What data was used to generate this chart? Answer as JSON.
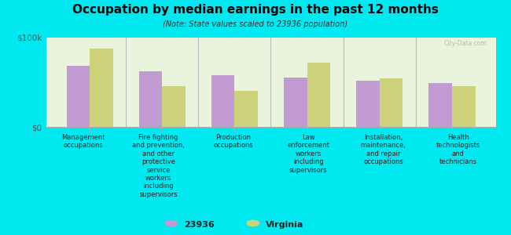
{
  "title": "Occupation by median earnings in the past 12 months",
  "subtitle": "(Note: State values scaled to 23936 population)",
  "categories": [
    "Management\noccupations",
    "Fire fighting\nand prevention,\nand other\nprotective\nservice\nworkers\nincluding\nsupervisors",
    "Production\noccupations",
    "Law\nenforcement\nworkers\nincluding\nsupervisors",
    "Installation,\nmaintenance,\nand repair\noccupations",
    "Health\ntechnologists\nand\ntechnicians"
  ],
  "values_23936": [
    68000,
    62000,
    58000,
    55000,
    52000,
    49000
  ],
  "values_virginia": [
    88000,
    46000,
    40000,
    72000,
    54000,
    46000
  ],
  "ylim": [
    0,
    100000
  ],
  "yticks": [
    0,
    100000
  ],
  "ytick_labels": [
    "$0",
    "$100k"
  ],
  "color_23936": "#c39bd3",
  "color_virginia": "#cdd17a",
  "background_color": "#00e8f0",
  "plot_bg_color": "#eaf4dc",
  "legend_label_23936": "23936",
  "legend_label_virginia": "Virginia",
  "bar_width": 0.32,
  "watermark": "City-Data.com"
}
